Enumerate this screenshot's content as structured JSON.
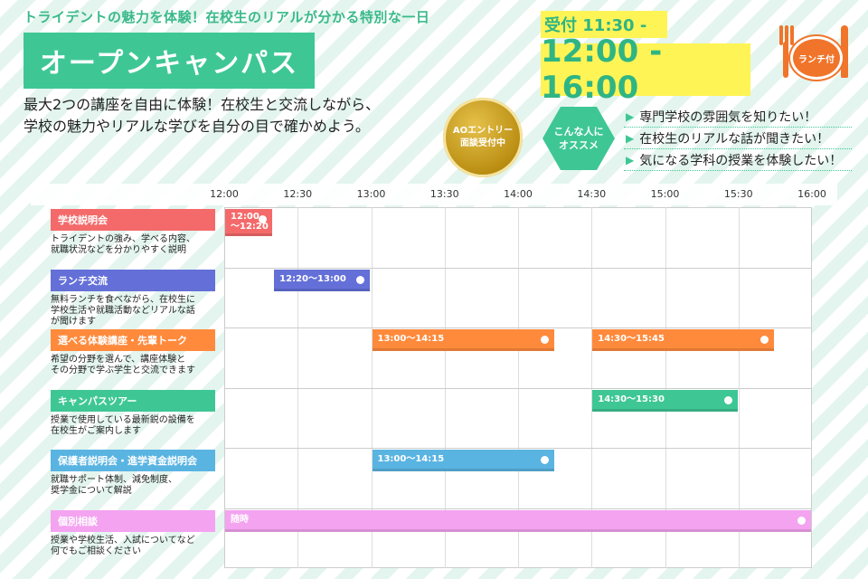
{
  "header": {
    "tagline": "トライデントの魅力を体験！在校生のリアルが分かる特別な一日",
    "title": "オープンキャンパス",
    "description": [
      "最大2つの講座を自由に体験！在校生と交流しながら、",
      "学校の魅力やリアルな学びを自分の目で確かめよう。"
    ],
    "reception": "受付 11:30 -",
    "hours": "12:00 - 16:00",
    "lunch_badge": "ランチ付",
    "ao_badge": [
      "AOエントリー",
      "面談受付中"
    ],
    "recommend_badge": [
      "こんな人に",
      "オススメ"
    ],
    "recommend_points": [
      "専門学校の雰囲気を知りたい！",
      "在校生のリアルな話が聞きたい！",
      "気になる学科の授業を体験したい！"
    ]
  },
  "timeline": {
    "ticks": [
      "12:00",
      "12:30",
      "13:00",
      "13:30",
      "14:00",
      "14:30",
      "15:00",
      "15:30",
      "16:00"
    ],
    "start_minutes": 720,
    "end_minutes": 960
  },
  "events": [
    {
      "label": "学校説明会",
      "color": "#f46a6a",
      "description": [
        "トライデントの強み、学べる内容、",
        "就職状況などを分かりやすく説明"
      ],
      "sessions": [
        {
          "text": "12:00\n〜12:20",
          "start": 720,
          "end": 740
        }
      ]
    },
    {
      "label": "ランチ交流",
      "color": "#6470d8",
      "description": [
        "無料ランチを食べながら、在校生に",
        "学校生活や就職活動などリアルな話",
        "が聞けます"
      ],
      "sessions": [
        {
          "text": "12:20〜13:00",
          "start": 740,
          "end": 780
        }
      ]
    },
    {
      "label": "選べる体験講座・先輩トーク",
      "color": "#ff8a3c",
      "description": [
        "希望の分野を選んで、講座体験と",
        "その分野で学ぶ学生と交流できます"
      ],
      "sessions": [
        {
          "text": "13:00〜14:15",
          "start": 780,
          "end": 855
        },
        {
          "text": "14:30〜15:45",
          "start": 870,
          "end": 945
        }
      ]
    },
    {
      "label": "キャンパスツアー",
      "color": "#3ec795",
      "description": [
        "授業で使用している最新鋭の設備を",
        "在校生がご案内します"
      ],
      "sessions": [
        {
          "text": "14:30〜15:30",
          "start": 870,
          "end": 930
        }
      ]
    },
    {
      "label": "保護者説明会・進学資金説明会",
      "color": "#5ab4e2",
      "description": [
        "就職サポート体制、減免制度、",
        "奨学金について解説"
      ],
      "sessions": [
        {
          "text": "13:00〜14:15",
          "start": 780,
          "end": 855
        }
      ]
    },
    {
      "label": "個別相談",
      "color": "#f4a3f0",
      "description": [
        "授業や学校生活、入試についてなど",
        "何でもご相談ください"
      ],
      "sessions": [
        {
          "text": "随時",
          "start": 720,
          "end": 960
        }
      ]
    }
  ]
}
